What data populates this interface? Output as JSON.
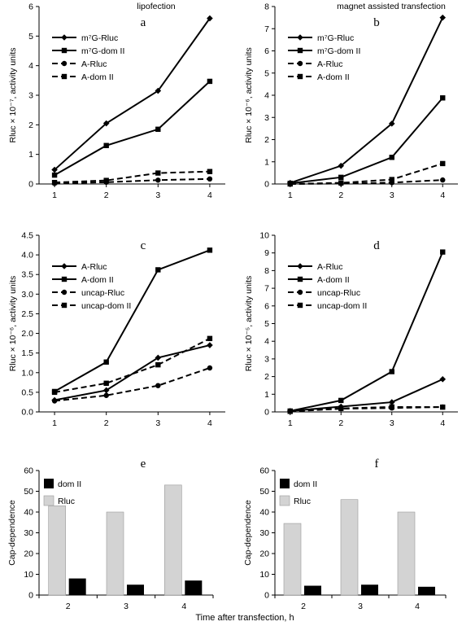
{
  "page": {
    "xlabel": "Time after transfection, h"
  },
  "colors": {
    "line": "#000000",
    "bar_rluc": "#d3d3d3",
    "bar_domii": "#000000",
    "axis": "#000000"
  },
  "chart_data": [
    {
      "type": "line",
      "panel": "a",
      "title": "lipofection",
      "ylabel": "Rluc × 10⁻⁷, activity units",
      "ylim": [
        0,
        6
      ],
      "yticks": [
        0,
        1,
        2,
        3,
        4,
        5,
        6
      ],
      "ytick_labels": [
        "0",
        "1",
        "2",
        "3",
        "4",
        "5",
        "6"
      ],
      "xlim": [
        0.7,
        4.3
      ],
      "x": [
        1,
        2,
        3,
        4
      ],
      "legend_position": "top-left",
      "series": [
        {
          "name": "m⁷G-Rluc",
          "marker": "diamond",
          "dash": "solid",
          "values": [
            0.48,
            2.05,
            3.15,
            5.6
          ]
        },
        {
          "name": "m⁷G-dom II",
          "marker": "square",
          "dash": "solid",
          "values": [
            0.3,
            1.3,
            1.85,
            3.47
          ]
        },
        {
          "name": "A-Rluc",
          "marker": "circle",
          "dash": "dashed",
          "values": [
            0.02,
            0.06,
            0.13,
            0.17
          ]
        },
        {
          "name": "A-dom II",
          "marker": "square",
          "dash": "dashed",
          "values": [
            0.05,
            0.12,
            0.37,
            0.42
          ]
        }
      ]
    },
    {
      "type": "line",
      "panel": "b",
      "title": "magnet assisted transfection",
      "ylabel": "Rluc × 10⁻⁶, activity units",
      "ylim": [
        0,
        8
      ],
      "yticks": [
        0,
        1,
        2,
        3,
        4,
        5,
        6,
        7,
        8
      ],
      "ytick_labels": [
        "0",
        "1",
        "2",
        "3",
        "4",
        "5",
        "6",
        "7",
        "8"
      ],
      "xlim": [
        0.7,
        4.3
      ],
      "x": [
        1,
        2,
        3,
        4
      ],
      "legend_position": "top-left",
      "series": [
        {
          "name": "m⁷G-Rluc",
          "marker": "diamond",
          "dash": "solid",
          "values": [
            0.05,
            0.82,
            2.72,
            7.5
          ]
        },
        {
          "name": "m⁷G-dom II",
          "marker": "square",
          "dash": "solid",
          "values": [
            0.03,
            0.3,
            1.2,
            3.88
          ]
        },
        {
          "name": "A-Rluc",
          "marker": "circle",
          "dash": "dashed",
          "values": [
            0.0,
            0.02,
            0.06,
            0.18
          ]
        },
        {
          "name": "A-dom II",
          "marker": "square",
          "dash": "dashed",
          "values": [
            0.0,
            0.05,
            0.2,
            0.92
          ]
        }
      ]
    },
    {
      "type": "line",
      "panel": "c",
      "ylabel": "Rluc × 10⁻⁶, activity units",
      "ylim": [
        0,
        4.5
      ],
      "yticks": [
        0,
        0.5,
        1,
        1.5,
        2,
        2.5,
        3,
        3.5,
        4,
        4.5
      ],
      "ytick_labels": [
        "0.0",
        "0.5",
        "1.0",
        "1.5",
        "2.0",
        "2.5",
        "3.0",
        "3.5",
        "4.0",
        "4.5"
      ],
      "xlim": [
        0.7,
        4.3
      ],
      "x": [
        1,
        2,
        3,
        4
      ],
      "legend_position": "top-left",
      "series": [
        {
          "name": "A-Rluc",
          "marker": "diamond",
          "dash": "solid",
          "values": [
            0.3,
            0.55,
            1.38,
            1.7
          ]
        },
        {
          "name": "A-dom II",
          "marker": "square",
          "dash": "solid",
          "values": [
            0.52,
            1.27,
            3.62,
            4.12
          ]
        },
        {
          "name": "uncap-Rluc",
          "marker": "circle",
          "dash": "dashed",
          "values": [
            0.28,
            0.42,
            0.67,
            1.12
          ]
        },
        {
          "name": "uncap-dom II",
          "marker": "square",
          "dash": "dashed",
          "values": [
            0.5,
            0.73,
            1.2,
            1.87
          ]
        }
      ]
    },
    {
      "type": "line",
      "panel": "d",
      "ylabel": "Rluc × 10⁻⁵, activity units",
      "ylim": [
        0,
        10
      ],
      "yticks": [
        0,
        1,
        2,
        3,
        4,
        5,
        6,
        7,
        8,
        9,
        10
      ],
      "ytick_labels": [
        "0",
        "1",
        "2",
        "3",
        "4",
        "5",
        "6",
        "7",
        "8",
        "9",
        "10"
      ],
      "xlim": [
        0.7,
        4.3
      ],
      "x": [
        1,
        2,
        3,
        4
      ],
      "legend_position": "top-left",
      "series": [
        {
          "name": "A-Rluc",
          "marker": "diamond",
          "dash": "solid",
          "values": [
            0.05,
            0.3,
            0.55,
            1.85
          ]
        },
        {
          "name": "A-dom II",
          "marker": "square",
          "dash": "solid",
          "values": [
            0.05,
            0.65,
            2.28,
            9.05
          ]
        },
        {
          "name": "uncap-Rluc",
          "marker": "circle",
          "dash": "dashed",
          "values": [
            0.03,
            0.18,
            0.22,
            0.28
          ]
        },
        {
          "name": "uncap-dom II",
          "marker": "square",
          "dash": "dashed",
          "values": [
            0.03,
            0.2,
            0.28,
            0.27
          ]
        }
      ]
    },
    {
      "type": "bar",
      "panel": "e",
      "ylabel": "Cap-dependence",
      "ylim": [
        0,
        60
      ],
      "yticks": [
        0,
        10,
        20,
        30,
        40,
        50,
        60
      ],
      "ytick_labels": [
        "0",
        "10",
        "20",
        "30",
        "40",
        "50",
        "60"
      ],
      "categories": [
        "2",
        "3",
        "4"
      ],
      "legend_position": "top-left",
      "series": [
        {
          "name": "Rluc",
          "color": "#d3d3d3",
          "values": [
            43,
            40,
            53
          ]
        },
        {
          "name": "dom II",
          "color": "#000000",
          "values": [
            8,
            5,
            7
          ]
        }
      ],
      "legend_order": [
        "dom II",
        "Rluc"
      ]
    },
    {
      "type": "bar",
      "panel": "f",
      "ylabel": "Cap-dependence",
      "ylim": [
        0,
        60
      ],
      "yticks": [
        0,
        10,
        20,
        30,
        40,
        50,
        60
      ],
      "ytick_labels": [
        "0",
        "10",
        "20",
        "30",
        "40",
        "50",
        "60"
      ],
      "categories": [
        "2",
        "3",
        "4"
      ],
      "legend_position": "top-left",
      "series": [
        {
          "name": "Rluc",
          "color": "#d3d3d3",
          "values": [
            34.5,
            46,
            40
          ]
        },
        {
          "name": "dom II",
          "color": "#000000",
          "values": [
            4.5,
            5,
            4
          ]
        }
      ],
      "legend_order": [
        "dom II",
        "Rluc"
      ]
    }
  ]
}
